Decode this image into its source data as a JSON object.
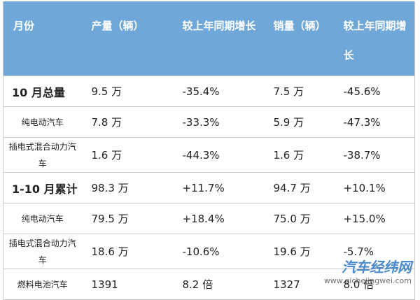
{
  "table": {
    "header": [
      "月份",
      "产量（辆）",
      "较上年同期增长",
      "销量（辆）",
      "较上年同期增长"
    ],
    "rows": [
      [
        "10 月总量",
        "9.5 万",
        "-35.4%",
        "7.5 万",
        "-45.6%"
      ],
      [
        "纯电动汽车",
        "7.8 万",
        "-33.3%",
        "5.9 万",
        "-47.3%"
      ],
      [
        "插电式混合动力汽车",
        "1.6 万",
        "-44.3%",
        "1.6 万",
        "-38.7%"
      ],
      [
        "1-10 月累计",
        "98.3 万",
        "+11.7%",
        "94.7 万",
        "+10.1%"
      ],
      [
        "纯电动汽车",
        "79.5 万",
        "+18.4%",
        "75.0 万",
        "+15.0%"
      ],
      [
        "插电式混合动力汽车",
        "18.6 万",
        "-10.6%",
        "19.6 万",
        "-5.7%"
      ],
      [
        "燃料电池汽车",
        "1391",
        "8.2 倍",
        "1327",
        "8.0 倍"
      ]
    ]
  },
  "watermark": {
    "name": "汽车经纬网",
    "url": "www.qichejingwei.com"
  }
}
